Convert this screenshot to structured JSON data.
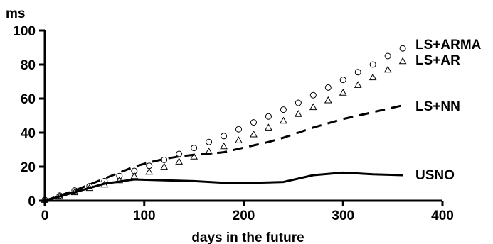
{
  "chart_data": {
    "type": "line",
    "title": "",
    "xlabel": "days in the future",
    "ylabel": "ms",
    "xlim": [
      0,
      400
    ],
    "ylim": [
      0,
      100
    ],
    "x_ticks": [
      "0",
      "100",
      "200",
      "300",
      "400"
    ],
    "y_ticks": [
      "0",
      "20",
      "40",
      "60",
      "80",
      "100"
    ],
    "grid": false,
    "series": [
      {
        "name": "LS+ARMA",
        "style": "open-circle-markers",
        "x": [
          0,
          15,
          30,
          45,
          60,
          75,
          90,
          105,
          120,
          135,
          150,
          165,
          180,
          195,
          210,
          225,
          240,
          255,
          270,
          285,
          300,
          315,
          330,
          345,
          360
        ],
        "values": [
          0.5,
          3,
          6,
          8.5,
          11.5,
          14.5,
          17.5,
          20.5,
          24,
          27.5,
          31,
          34.5,
          38,
          42,
          46,
          49.5,
          53.5,
          57.5,
          62,
          66.5,
          71,
          75.5,
          80,
          85,
          89.5
        ]
      },
      {
        "name": "LS+AR",
        "style": "open-triangle-markers",
        "x": [
          0,
          15,
          30,
          45,
          60,
          75,
          90,
          105,
          120,
          135,
          150,
          165,
          180,
          195,
          210,
          225,
          240,
          255,
          270,
          285,
          300,
          315,
          330,
          345,
          360
        ],
        "values": [
          0.5,
          2.5,
          5,
          7.5,
          9.5,
          12,
          14.5,
          17,
          20,
          23,
          26,
          29,
          32,
          35.5,
          39,
          43,
          47,
          51,
          55,
          59,
          63.5,
          68,
          72.5,
          77,
          82
        ]
      },
      {
        "name": "LS+NN",
        "style": "dashed-line",
        "x": [
          0,
          15,
          30,
          45,
          60,
          75,
          90,
          105,
          120,
          135,
          150,
          165,
          180,
          195,
          210,
          225,
          240,
          255,
          270,
          285,
          300,
          315,
          330,
          345,
          360
        ],
        "values": [
          0,
          3,
          6,
          9.5,
          13,
          16.5,
          20,
          22.5,
          24.5,
          26,
          27,
          27.5,
          28.5,
          30.5,
          32.5,
          34.5,
          37,
          40,
          43,
          45.5,
          48,
          50,
          52,
          54,
          56
        ]
      },
      {
        "name": "USNO",
        "style": "solid-line",
        "x": [
          0,
          30,
          60,
          90,
          120,
          150,
          180,
          210,
          240,
          270,
          300,
          330,
          360
        ],
        "values": [
          0,
          5,
          10,
          12.5,
          12,
          11.5,
          10.5,
          10.5,
          11,
          15,
          16.5,
          15.5,
          15
        ]
      }
    ]
  }
}
